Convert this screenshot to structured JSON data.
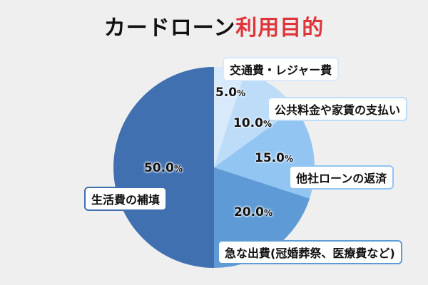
{
  "chart_data": {
    "type": "pie",
    "title": "カードローン",
    "title_accent": "利用目的",
    "title_accent_color": "#e0353a",
    "start": "12 o'clock, clockwise",
    "slices": [
      {
        "label": "交通費・レジャー費",
        "value": 5.0,
        "display": "5.0",
        "color": "#d7e9fa"
      },
      {
        "label": "公共料金や家賃の支払い",
        "value": 10.0,
        "display": "10.0",
        "color": "#bcdcf8"
      },
      {
        "label": "他社ローンの返済",
        "value": 15.0,
        "display": "15.0",
        "color": "#92c5f1"
      },
      {
        "label": "急な出費(冠婚葬祭、医療費など)",
        "value": 20.0,
        "display": "20.0",
        "color": "#5e9bd6"
      },
      {
        "label": "生活費の補填",
        "value": 50.0,
        "display": "50.0",
        "color": "#4170b1"
      }
    ],
    "unit": "%"
  }
}
